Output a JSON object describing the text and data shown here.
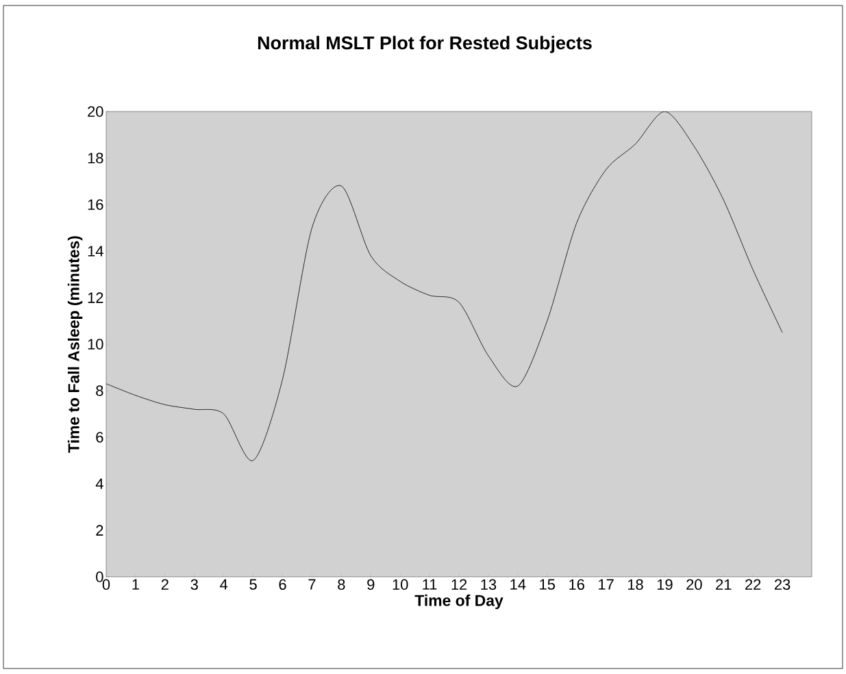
{
  "chart_data": {
    "type": "line",
    "title": "Normal MSLT Plot for Rested Subjects",
    "xlabel": "Time of Day",
    "ylabel": "Time to Fall Asleep (minutes)",
    "categories": [
      "0",
      "1",
      "2",
      "3",
      "4",
      "5",
      "6",
      "7",
      "8",
      "9",
      "10",
      "11",
      "12",
      "13",
      "14",
      "15",
      "16",
      "17",
      "18",
      "19",
      "20",
      "21",
      "22",
      "23"
    ],
    "series": [
      {
        "color": "#000000",
        "values": [
          8.3,
          7.8,
          7.4,
          7.2,
          7.0,
          5.0,
          8.5,
          15.0,
          16.8,
          13.8,
          12.7,
          12.1,
          11.8,
          9.5,
          8.2,
          11.0,
          15.2,
          17.5,
          18.6,
          20.0,
          18.5,
          16.2,
          13.2,
          10.5
        ]
      }
    ],
    "ylim": [
      0,
      20
    ],
    "yticks": [
      0,
      2,
      4,
      6,
      8,
      10,
      12,
      14,
      16,
      18,
      20
    ],
    "grid": false
  }
}
